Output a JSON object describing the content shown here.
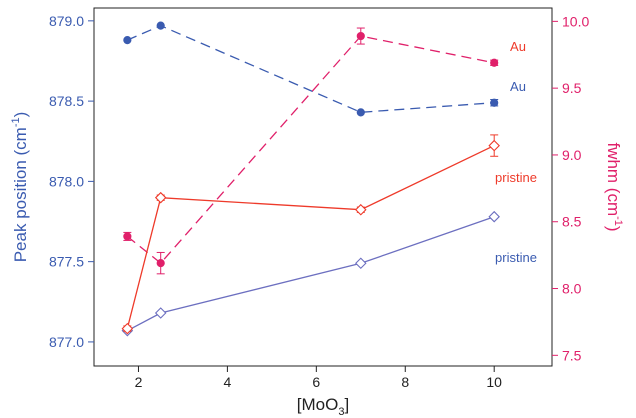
{
  "colors": {
    "blue": "#3a5bb0",
    "blue_light": "#6c6fc0",
    "magenta": "#e0206a",
    "red": "#ee3a2a",
    "axis": "#222222"
  },
  "chart_data": {
    "type": "line",
    "xlabel_base": "[MoO",
    "xlabel_sub": "3",
    "xlabel_close": "]",
    "ylabel_left": "Peak position (cm",
    "ylabel_left_sup": "-1",
    "ylabel_left_close": ")",
    "ylabel_right": "fwhm (cm",
    "ylabel_right_sup": "-1",
    "ylabel_right_close": ")",
    "xlim": [
      1,
      11.3
    ],
    "ylim_left": [
      876.85,
      879.08
    ],
    "ylim_right": [
      7.42,
      10.1
    ],
    "x_ticks": [
      2,
      4,
      6,
      8,
      10
    ],
    "y_ticks_left": [
      "877.0",
      "877.5",
      "878.0",
      "878.5",
      "879.0"
    ],
    "y_ticks_right": [
      "7.5",
      "8.0",
      "8.5",
      "9.0",
      "9.5",
      "10.0"
    ],
    "series": [
      {
        "name": "Au",
        "axis": "left",
        "style": "dashed",
        "marker": "circle",
        "color": "#3a5bb0",
        "x": [
          1.75,
          2.5,
          7.0,
          10.0
        ],
        "y": [
          878.88,
          878.97,
          878.43,
          878.49
        ],
        "err": [
          0,
          0,
          0,
          0.02
        ]
      },
      {
        "name": "pristine",
        "axis": "left",
        "style": "solid",
        "marker": "diamond-open",
        "color": "#6c6fc0",
        "x": [
          1.75,
          2.5,
          7.0,
          10.0
        ],
        "y": [
          877.07,
          877.18,
          877.49,
          877.78
        ],
        "err": [
          0,
          0,
          0,
          0
        ]
      },
      {
        "name": "Au",
        "axis": "right",
        "style": "dashed",
        "marker": "circle",
        "color": "#e0206a",
        "x": [
          1.75,
          2.5,
          7.0,
          10.0
        ],
        "y": [
          8.39,
          8.19,
          9.89,
          9.69
        ],
        "err": [
          0.03,
          0.08,
          0.06,
          0.02
        ]
      },
      {
        "name": "pristine",
        "axis": "right",
        "style": "solid",
        "marker": "diamond-open",
        "color": "#ee3a2a",
        "x": [
          1.75,
          2.5,
          7.0,
          10.0
        ],
        "y": [
          7.7,
          8.68,
          8.59,
          9.07
        ],
        "err": [
          0.02,
          0.02,
          0.02,
          0.08
        ]
      }
    ],
    "annotations": [
      {
        "text": "Au",
        "color": "#ee3a2a"
      },
      {
        "text": "Au",
        "color": "#3a5bb0"
      },
      {
        "text": "pristine",
        "color": "#ee3a2a"
      },
      {
        "text": "pristine",
        "color": "#3a5bb0"
      }
    ]
  }
}
